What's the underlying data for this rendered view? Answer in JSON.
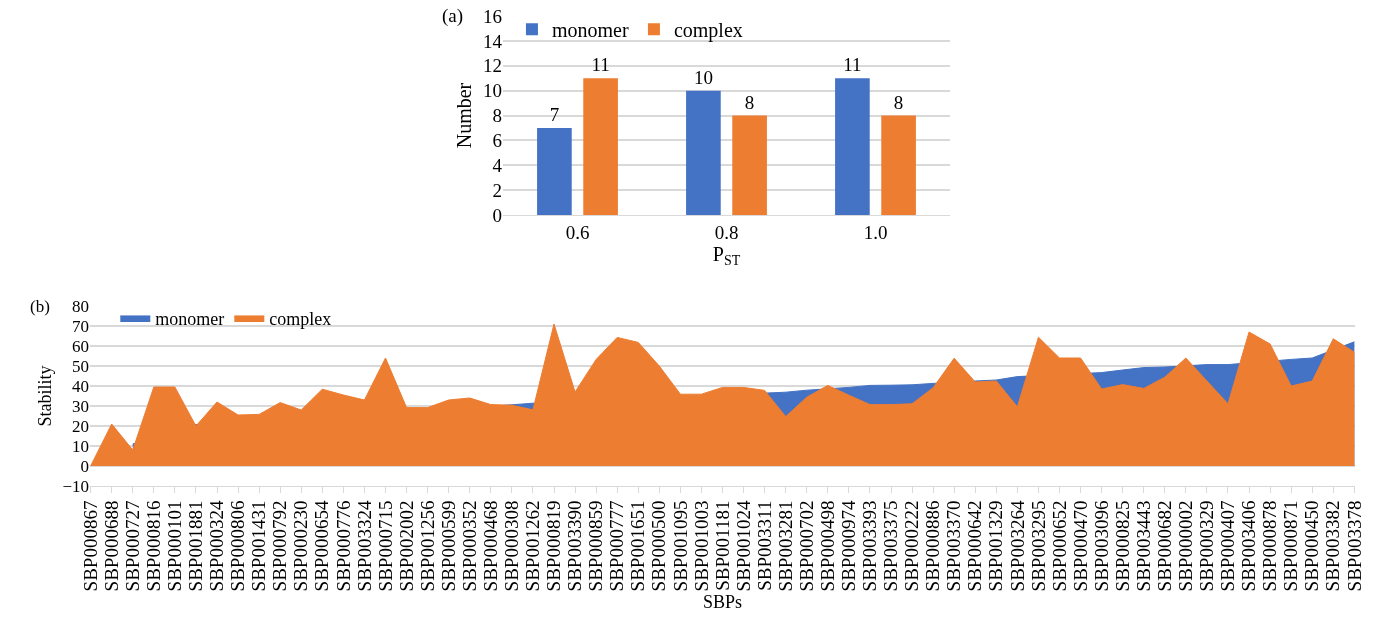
{
  "chart_data": [
    {
      "type": "bar",
      "title": "(a)",
      "xlabel": "P$_{ST}$",
      "ylabel": "Number",
      "categories": [
        "0.6",
        "0.8",
        "1.0"
      ],
      "series": [
        {
          "name": "monomer",
          "color": "#4472c4",
          "values": [
            7,
            10,
            11
          ]
        },
        {
          "name": "complex",
          "color": "#ed7d31",
          "values": [
            11,
            8,
            8
          ]
        }
      ],
      "ylim": [
        0,
        16
      ],
      "yticks": [
        0,
        2,
        4,
        6,
        8,
        10,
        12,
        14,
        16
      ],
      "grid": "y",
      "legend": "top left",
      "data_labels": true
    },
    {
      "type": "area",
      "title": "(b)",
      "xlabel": "SBPs",
      "ylabel": "Stability",
      "categories": [
        "SBP000867",
        "SBP000688",
        "SBP000727",
        "SBP000816",
        "SBP000101",
        "SBP001881",
        "SBP000324",
        "SBP000806",
        "SBP001431",
        "SBP000792",
        "SBP000230",
        "SBP000654",
        "SBP000776",
        "SBP003324",
        "SBP000715",
        "SBP002002",
        "SBP001256",
        "SBP000599",
        "SBP000352",
        "SBP000468",
        "SBP000308",
        "SBP001262",
        "SBP000819",
        "SBP003390",
        "SBP000859",
        "SBP000777",
        "SBP001651",
        "SBP000500",
        "SBP001095",
        "SBP001003",
        "SBP001181",
        "SBP001024",
        "SBP003311",
        "SBP003281",
        "SBP000702",
        "SBP000498",
        "SBP000974",
        "SBP003393",
        "SBP003375",
        "SBP000222",
        "SBP000886",
        "SBP003370",
        "SBP000642",
        "SBP001329",
        "SBP003264",
        "SBP003295",
        "SBP000652",
        "SBP000470",
        "SBP003096",
        "SBP000825",
        "SBP003443",
        "SBP000682",
        "SBP000002",
        "SBP000329",
        "SBP000407",
        "SBP003406",
        "SBP000878",
        "SBP000871",
        "SBP000450",
        "SBP003382",
        "SBP003378"
      ],
      "series": [
        {
          "name": "monomer",
          "color": "#4472c4",
          "values": [
            null,
            null,
            11,
            null,
            null,
            20.7,
            null,
            null,
            null,
            null,
            null,
            null,
            null,
            null,
            null,
            null,
            null,
            null,
            null,
            null,
            30.6,
            31.4,
            null,
            null,
            null,
            null,
            null,
            null,
            null,
            null,
            null,
            null,
            null,
            36.9,
            37.9,
            null,
            39.3,
            40.3,
            40.4,
            40.6,
            41.3,
            null,
            42.5,
            43,
            44.7,
            null,
            null,
            null,
            46.7,
            48,
            49.2,
            49.5,
            null,
            50.7,
            50.7,
            null,
            null,
            53.3,
            54,
            null,
            62.1
          ]
        },
        {
          "name": "complex",
          "color": "#ed7d31",
          "values": [
            0,
            21,
            8,
            39.5,
            39.5,
            20,
            32,
            25.5,
            25.8,
            31.7,
            28,
            38.4,
            35.5,
            33,
            54,
            29.2,
            29.2,
            33,
            34,
            30.7,
            30.4,
            28.1,
            71,
            37,
            53.3,
            64.3,
            61.8,
            50,
            35.9,
            35.9,
            39.3,
            39.3,
            37.8,
            24.7,
            34.4,
            40.3,
            35.4,
            30.7,
            30.7,
            31.1,
            39.1,
            53.9,
            42,
            42.5,
            29.6,
            64.4,
            54,
            54,
            38.5,
            40.7,
            38.8,
            44.4,
            54,
            42.5,
            31.1,
            67,
            61,
            40,
            42.5,
            63.6,
            56.9
          ]
        }
      ],
      "ylim": [
        -10,
        80
      ],
      "yticks": [
        {
          "value": -10,
          "label": "−10"
        },
        0,
        10,
        20,
        30,
        40,
        50,
        60,
        70,
        80
      ],
      "grid": "y",
      "legend": "top left"
    }
  ]
}
